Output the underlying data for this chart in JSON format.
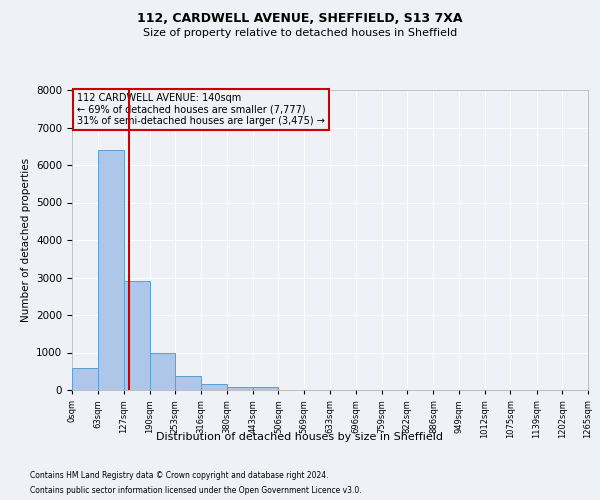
{
  "title1": "112, CARDWELL AVENUE, SHEFFIELD, S13 7XA",
  "title2": "Size of property relative to detached houses in Sheffield",
  "xlabel": "Distribution of detached houses by size in Sheffield",
  "ylabel": "Number of detached properties",
  "footer1": "Contains HM Land Registry data © Crown copyright and database right 2024.",
  "footer2": "Contains public sector information licensed under the Open Government Licence v3.0.",
  "bin_edges": [
    0,
    63,
    127,
    190,
    253,
    316,
    380,
    443,
    506,
    569,
    633,
    696,
    759,
    822,
    886,
    949,
    1012,
    1075,
    1139,
    1202,
    1265
  ],
  "bar_heights": [
    600,
    6400,
    2900,
    1000,
    380,
    160,
    90,
    80,
    0,
    0,
    0,
    0,
    0,
    0,
    0,
    0,
    0,
    0,
    0,
    0
  ],
  "bar_color": "#aec6e8",
  "bar_edge_color": "#5a9fd4",
  "property_size": 140,
  "annotation_line1": "112 CARDWELL AVENUE: 140sqm",
  "annotation_line2": "← 69% of detached houses are smaller (7,777)",
  "annotation_line3": "31% of semi-detached houses are larger (3,475) →",
  "annotation_box_color": "#cc0000",
  "background_color": "#eef2f7",
  "grid_color": "#ffffff",
  "ylim": [
    0,
    8000
  ],
  "yticks": [
    0,
    1000,
    2000,
    3000,
    4000,
    5000,
    6000,
    7000,
    8000
  ]
}
